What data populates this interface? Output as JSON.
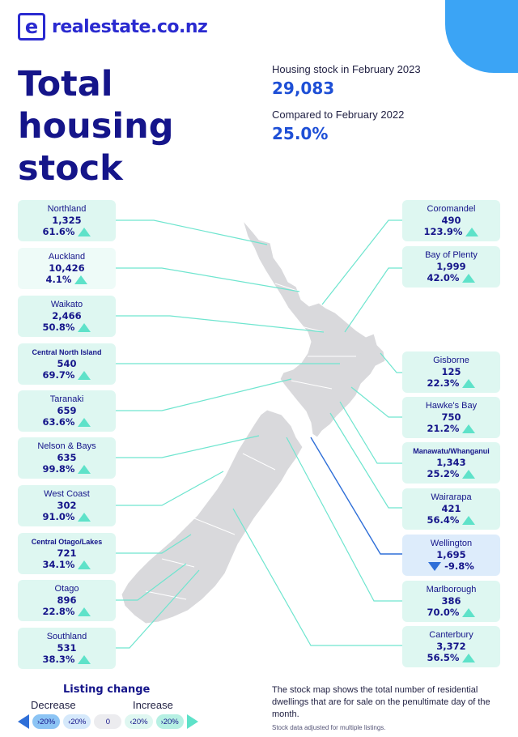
{
  "brand": {
    "mark": "e",
    "name": "realestate",
    "tld": ".co.nz"
  },
  "headline": "Total housing stock",
  "stats": [
    {
      "label": "Housing stock in February 2023",
      "value": "29,083"
    },
    {
      "label": "Compared to February 2022",
      "value": "25.0%"
    }
  ],
  "regions_left": [
    {
      "name": "Northland",
      "count": "1,325",
      "change": "61.6%",
      "direction": "up"
    },
    {
      "name": "Auckland",
      "count": "10,426",
      "change": "4.1%",
      "direction": "up"
    },
    {
      "name": "Waikato",
      "count": "2,466",
      "change": "50.8%",
      "direction": "up"
    },
    {
      "name": "Central North Island",
      "count": "540",
      "change": "69.7%",
      "direction": "up"
    },
    {
      "name": "Taranaki",
      "count": "659",
      "change": "63.6%",
      "direction": "up"
    },
    {
      "name": "Nelson & Bays",
      "count": "635",
      "change": "99.8%",
      "direction": "up"
    },
    {
      "name": "West Coast",
      "count": "302",
      "change": "91.0%",
      "direction": "up"
    },
    {
      "name": "Central Otago/Lakes",
      "count": "721",
      "change": "34.1%",
      "direction": "up"
    },
    {
      "name": "Otago",
      "count": "896",
      "change": "22.8%",
      "direction": "up"
    },
    {
      "name": "Southland",
      "count": "531",
      "change": "38.3%",
      "direction": "up"
    }
  ],
  "regions_right": [
    {
      "name": "Coromandel",
      "count": "490",
      "change": "123.9%",
      "direction": "up"
    },
    {
      "name": "Bay of Plenty",
      "count": "1,999",
      "change": "42.0%",
      "direction": "up"
    },
    {
      "name": "Gisborne",
      "count": "125",
      "change": "22.3%",
      "direction": "up"
    },
    {
      "name": "Hawke's Bay",
      "count": "750",
      "change": "21.2%",
      "direction": "up"
    },
    {
      "name": "Manawatu/Whanganui",
      "count": "1,343",
      "change": "25.2%",
      "direction": "up"
    },
    {
      "name": "Wairarapa",
      "count": "421",
      "change": "56.4%",
      "direction": "up"
    },
    {
      "name": "Wellington",
      "count": "1,695",
      "change": "-9.8%",
      "direction": "down"
    },
    {
      "name": "Marlborough",
      "count": "386",
      "change": "70.0%",
      "direction": "up"
    },
    {
      "name": "Canterbury",
      "count": "3,372",
      "change": "56.5%",
      "direction": "up"
    }
  ],
  "legend": {
    "title": "Listing change",
    "decrease": "Decrease",
    "increase": "Increase",
    "steps": [
      "›20%",
      "‹20%",
      "0",
      "‹20%",
      "›20%"
    ]
  },
  "note": "The stock map shows the total number of residential dwellings that are for sale on the penultimate day of the month.",
  "note_small": "Stock data adjusted for multiple listings.",
  "colors": {
    "increase": "#5ee2c9",
    "decrease": "#2f6fd8",
    "card": "#def7f1",
    "brand": "#2a2ad0"
  }
}
